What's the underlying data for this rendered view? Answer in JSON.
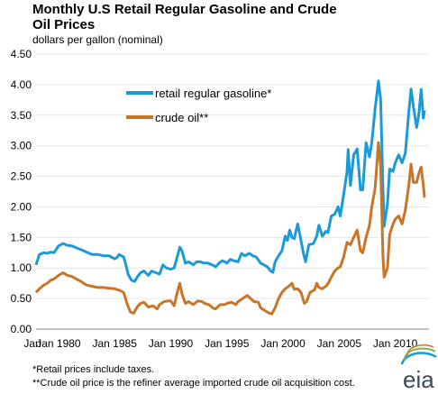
{
  "chart_data": {
    "type": "line",
    "title_line1": "Monthly U.S Retail Regular Gasoline and Crude",
    "title_line2": "Oil Prices",
    "ylabel": "dollars per gallon (nominal)",
    "ylim": [
      0,
      4.5
    ],
    "xlim": [
      1978,
      2013
    ],
    "y_ticks": [
      "0.00",
      "0.50",
      "1.00",
      "1.50",
      "2.00",
      "2.50",
      "3.00",
      "3.50",
      "4.00",
      "4.50"
    ],
    "x_ticks": [
      {
        "label": "Jan 1980",
        "year": 1980
      },
      {
        "label": "Jan 1985",
        "year": 1985
      },
      {
        "label": "Jan 1990",
        "year": 1990
      },
      {
        "label": "Jan 1995",
        "year": 1995
      },
      {
        "label": "Jan 2000",
        "year": 2000
      },
      {
        "label": "Jan 2005",
        "year": 2005
      },
      {
        "label": "Jan 2010",
        "year": 2010
      }
    ],
    "x_first_label": "Jan",
    "grid": "horizontal",
    "legend_position": "top-left",
    "series": [
      {
        "name": "retail regular gasoline*",
        "color": "#1a9ad6",
        "points": [
          [
            1978.0,
            1.05
          ],
          [
            1978.3,
            1.22
          ],
          [
            1978.7,
            1.25
          ],
          [
            1979.0,
            1.24
          ],
          [
            1979.3,
            1.26
          ],
          [
            1979.6,
            1.25
          ],
          [
            1980.0,
            1.36
          ],
          [
            1980.4,
            1.4
          ],
          [
            1980.8,
            1.37
          ],
          [
            1981.2,
            1.36
          ],
          [
            1981.6,
            1.33
          ],
          [
            1982.0,
            1.3
          ],
          [
            1982.5,
            1.26
          ],
          [
            1983.0,
            1.22
          ],
          [
            1983.5,
            1.22
          ],
          [
            1984.0,
            1.2
          ],
          [
            1984.5,
            1.2
          ],
          [
            1985.0,
            1.15
          ],
          [
            1985.2,
            1.17
          ],
          [
            1985.4,
            1.22
          ],
          [
            1985.6,
            1.2
          ],
          [
            1985.8,
            1.18
          ],
          [
            1986.0,
            1.05
          ],
          [
            1986.2,
            0.9
          ],
          [
            1986.5,
            0.8
          ],
          [
            1986.8,
            0.78
          ],
          [
            1987.0,
            0.85
          ],
          [
            1987.3,
            0.92
          ],
          [
            1987.6,
            0.95
          ],
          [
            1988.0,
            0.88
          ],
          [
            1988.3,
            0.95
          ],
          [
            1988.7,
            0.92
          ],
          [
            1989.0,
            0.9
          ],
          [
            1989.3,
            1.05
          ],
          [
            1989.6,
            1.0
          ],
          [
            1990.0,
            0.98
          ],
          [
            1990.3,
            1.0
          ],
          [
            1990.6,
            1.2
          ],
          [
            1990.8,
            1.34
          ],
          [
            1991.0,
            1.28
          ],
          [
            1991.3,
            1.08
          ],
          [
            1991.6,
            1.1
          ],
          [
            1992.0,
            1.05
          ],
          [
            1992.3,
            1.1
          ],
          [
            1992.6,
            1.1
          ],
          [
            1993.0,
            1.08
          ],
          [
            1993.3,
            1.08
          ],
          [
            1993.7,
            1.05
          ],
          [
            1994.0,
            1.02
          ],
          [
            1994.3,
            1.08
          ],
          [
            1994.6,
            1.12
          ],
          [
            1995.0,
            1.08
          ],
          [
            1995.3,
            1.14
          ],
          [
            1995.6,
            1.12
          ],
          [
            1996.0,
            1.1
          ],
          [
            1996.3,
            1.24
          ],
          [
            1996.6,
            1.2
          ],
          [
            1997.0,
            1.24
          ],
          [
            1997.3,
            1.2
          ],
          [
            1997.6,
            1.18
          ],
          [
            1998.0,
            1.08
          ],
          [
            1998.3,
            1.05
          ],
          [
            1998.6,
            1.02
          ],
          [
            1998.9,
            0.95
          ],
          [
            1999.1,
            0.93
          ],
          [
            1999.3,
            1.1
          ],
          [
            1999.6,
            1.2
          ],
          [
            1999.9,
            1.28
          ],
          [
            2000.2,
            1.52
          ],
          [
            2000.4,
            1.45
          ],
          [
            2000.6,
            1.62
          ],
          [
            2000.8,
            1.5
          ],
          [
            2001.0,
            1.48
          ],
          [
            2001.3,
            1.72
          ],
          [
            2001.5,
            1.55
          ],
          [
            2001.8,
            1.25
          ],
          [
            2002.0,
            1.1
          ],
          [
            2002.3,
            1.38
          ],
          [
            2002.7,
            1.4
          ],
          [
            2003.0,
            1.52
          ],
          [
            2003.2,
            1.7
          ],
          [
            2003.5,
            1.52
          ],
          [
            2003.8,
            1.6
          ],
          [
            2004.0,
            1.58
          ],
          [
            2004.3,
            1.85
          ],
          [
            2004.6,
            1.88
          ],
          [
            2004.9,
            2.0
          ],
          [
            2005.1,
            1.85
          ],
          [
            2005.4,
            2.2
          ],
          [
            2005.7,
            2.58
          ],
          [
            2005.8,
            2.94
          ],
          [
            2006.0,
            2.35
          ],
          [
            2006.3,
            2.85
          ],
          [
            2006.6,
            2.95
          ],
          [
            2006.9,
            2.28
          ],
          [
            2007.1,
            2.28
          ],
          [
            2007.4,
            3.05
          ],
          [
            2007.7,
            2.82
          ],
          [
            2007.9,
            3.05
          ],
          [
            2008.2,
            3.6
          ],
          [
            2008.5,
            4.06
          ],
          [
            2008.7,
            3.75
          ],
          [
            2008.9,
            2.3
          ],
          [
            2009.0,
            1.68
          ],
          [
            2009.3,
            2.05
          ],
          [
            2009.5,
            2.62
          ],
          [
            2009.8,
            2.58
          ],
          [
            2010.0,
            2.72
          ],
          [
            2010.3,
            2.85
          ],
          [
            2010.6,
            2.72
          ],
          [
            2010.9,
            2.88
          ],
          [
            2011.2,
            3.55
          ],
          [
            2011.4,
            3.93
          ],
          [
            2011.6,
            3.65
          ],
          [
            2011.9,
            3.3
          ],
          [
            2012.1,
            3.52
          ],
          [
            2012.3,
            3.92
          ],
          [
            2012.5,
            3.45
          ],
          [
            2012.6,
            3.58
          ]
        ]
      },
      {
        "name": "crude oil**",
        "color": "#c87527",
        "points": [
          [
            1978.0,
            0.6
          ],
          [
            1978.3,
            0.66
          ],
          [
            1978.7,
            0.72
          ],
          [
            1979.0,
            0.75
          ],
          [
            1979.3,
            0.8
          ],
          [
            1979.6,
            0.82
          ],
          [
            1980.0,
            0.88
          ],
          [
            1980.4,
            0.92
          ],
          [
            1980.8,
            0.88
          ],
          [
            1981.2,
            0.86
          ],
          [
            1981.6,
            0.82
          ],
          [
            1982.0,
            0.78
          ],
          [
            1982.5,
            0.72
          ],
          [
            1983.0,
            0.7
          ],
          [
            1983.5,
            0.68
          ],
          [
            1984.0,
            0.68
          ],
          [
            1984.5,
            0.67
          ],
          [
            1985.0,
            0.66
          ],
          [
            1985.5,
            0.63
          ],
          [
            1985.8,
            0.6
          ],
          [
            1986.1,
            0.42
          ],
          [
            1986.4,
            0.28
          ],
          [
            1986.7,
            0.26
          ],
          [
            1987.0,
            0.36
          ],
          [
            1987.3,
            0.42
          ],
          [
            1987.6,
            0.44
          ],
          [
            1988.0,
            0.36
          ],
          [
            1988.4,
            0.38
          ],
          [
            1988.8,
            0.33
          ],
          [
            1989.0,
            0.4
          ],
          [
            1989.4,
            0.45
          ],
          [
            1989.8,
            0.46
          ],
          [
            1990.0,
            0.46
          ],
          [
            1990.3,
            0.38
          ],
          [
            1990.6,
            0.62
          ],
          [
            1990.8,
            0.75
          ],
          [
            1991.0,
            0.58
          ],
          [
            1991.3,
            0.42
          ],
          [
            1991.6,
            0.45
          ],
          [
            1992.0,
            0.4
          ],
          [
            1992.4,
            0.46
          ],
          [
            1992.8,
            0.45
          ],
          [
            1993.0,
            0.42
          ],
          [
            1993.4,
            0.4
          ],
          [
            1993.8,
            0.34
          ],
          [
            1994.0,
            0.33
          ],
          [
            1994.4,
            0.4
          ],
          [
            1994.8,
            0.4
          ],
          [
            1995.0,
            0.42
          ],
          [
            1995.4,
            0.44
          ],
          [
            1995.8,
            0.4
          ],
          [
            1996.0,
            0.45
          ],
          [
            1996.4,
            0.5
          ],
          [
            1996.8,
            0.55
          ],
          [
            1997.0,
            0.52
          ],
          [
            1997.4,
            0.45
          ],
          [
            1997.8,
            0.44
          ],
          [
            1998.0,
            0.35
          ],
          [
            1998.4,
            0.3
          ],
          [
            1998.8,
            0.26
          ],
          [
            1999.0,
            0.25
          ],
          [
            1999.3,
            0.35
          ],
          [
            1999.6,
            0.5
          ],
          [
            1999.9,
            0.6
          ],
          [
            2000.2,
            0.66
          ],
          [
            2000.5,
            0.7
          ],
          [
            2000.8,
            0.75
          ],
          [
            2001.0,
            0.65
          ],
          [
            2001.3,
            0.66
          ],
          [
            2001.6,
            0.6
          ],
          [
            2001.9,
            0.42
          ],
          [
            2002.1,
            0.45
          ],
          [
            2002.4,
            0.6
          ],
          [
            2002.8,
            0.64
          ],
          [
            2003.0,
            0.75
          ],
          [
            2003.2,
            0.68
          ],
          [
            2003.5,
            0.66
          ],
          [
            2003.8,
            0.7
          ],
          [
            2004.0,
            0.74
          ],
          [
            2004.3,
            0.85
          ],
          [
            2004.6,
            0.95
          ],
          [
            2004.9,
            1.0
          ],
          [
            2005.1,
            1.02
          ],
          [
            2005.4,
            1.18
          ],
          [
            2005.7,
            1.42
          ],
          [
            2006.0,
            1.38
          ],
          [
            2006.3,
            1.5
          ],
          [
            2006.6,
            1.62
          ],
          [
            2006.9,
            1.28
          ],
          [
            2007.1,
            1.25
          ],
          [
            2007.4,
            1.5
          ],
          [
            2007.7,
            1.7
          ],
          [
            2007.9,
            2.0
          ],
          [
            2008.2,
            2.3
          ],
          [
            2008.5,
            3.05
          ],
          [
            2008.7,
            2.65
          ],
          [
            2008.9,
            1.2
          ],
          [
            2009.0,
            0.85
          ],
          [
            2009.3,
            1.0
          ],
          [
            2009.5,
            1.55
          ],
          [
            2009.8,
            1.72
          ],
          [
            2010.0,
            1.8
          ],
          [
            2010.3,
            1.85
          ],
          [
            2010.6,
            1.72
          ],
          [
            2010.9,
            1.95
          ],
          [
            2011.2,
            2.35
          ],
          [
            2011.4,
            2.7
          ],
          [
            2011.6,
            2.4
          ],
          [
            2011.9,
            2.4
          ],
          [
            2012.1,
            2.55
          ],
          [
            2012.3,
            2.65
          ],
          [
            2012.5,
            2.35
          ],
          [
            2012.6,
            2.15
          ]
        ]
      }
    ]
  },
  "footnotes": {
    "note1": "*Retail prices include taxes.",
    "note2": "**Crude oil price is the refiner average imported crude oil acquisition cost."
  },
  "logo": {
    "text": "eia",
    "colors": [
      "#1a9ad6",
      "#7ab648",
      "#c87527"
    ]
  }
}
